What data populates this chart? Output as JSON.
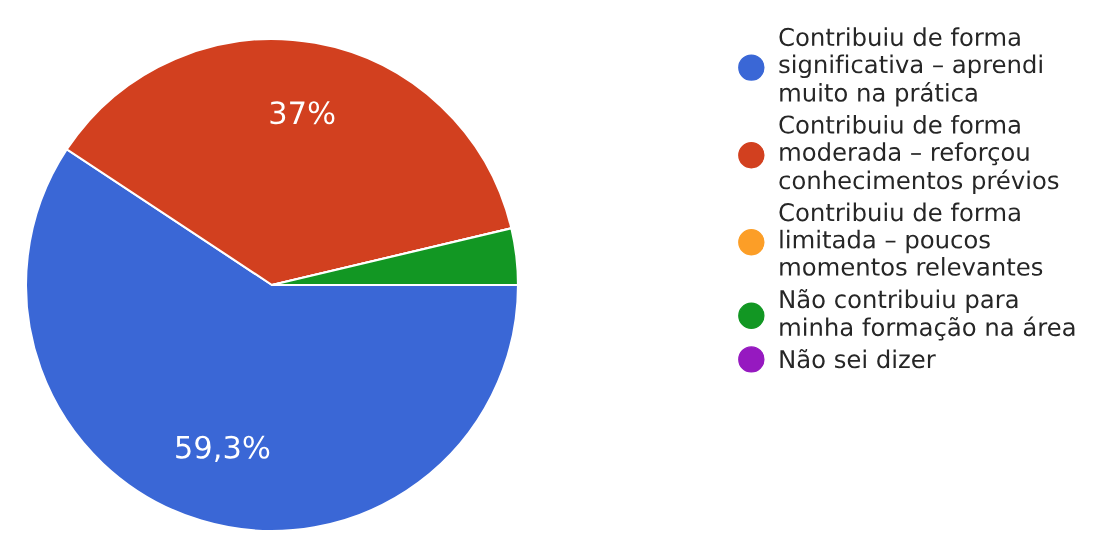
{
  "chart_data": {
    "type": "pie",
    "categories": [
      "Contribuiu de forma\nsignificativa – aprendi\nmuito na prática",
      "Contribuiu de forma\nmoderada – reforçou\nconhecimentos prévios",
      "Contribuiu de forma\nlimitada – poucos\nmomentos relevantes",
      "Não contribuiu para\nminha formação na área",
      "Não sei dizer"
    ],
    "values": [
      59.3,
      37,
      0,
      3.7,
      0
    ],
    "colors": [
      "#3a67d6",
      "#d2401f",
      "#fc9e27",
      "#129723",
      "#9619c0"
    ],
    "value_labels": [
      "59,3%",
      "37%",
      null,
      null,
      null
    ],
    "legend": "right"
  }
}
